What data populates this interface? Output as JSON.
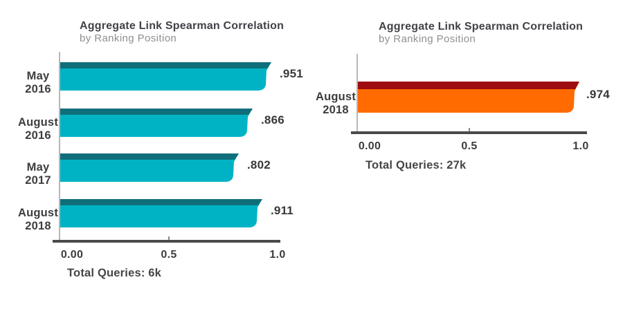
{
  "page": {
    "background": "#ffffff"
  },
  "chart_data": [
    {
      "type": "bar",
      "orientation": "horizontal",
      "title": "Aggregate Link Spearman Correlation",
      "subtitle": "by Ranking Position",
      "caption": "Total Queries: 6k",
      "categories": [
        [
          "May",
          "2016"
        ],
        [
          "August",
          "2016"
        ],
        [
          "May",
          "2017"
        ],
        [
          "August",
          "2018"
        ]
      ],
      "values": [
        0.951,
        0.866,
        0.802,
        0.911
      ],
      "value_labels": [
        ".951",
        ".866",
        ".802",
        ".911"
      ],
      "xlim": [
        0,
        1.0
      ],
      "x_ticks": [
        {
          "value": 0,
          "label": "0.00"
        },
        {
          "value": 0.5,
          "label": "0.5"
        },
        {
          "value": 1.0,
          "label": "1.0"
        }
      ],
      "grid": false,
      "legend": "none",
      "bar_color": "#00b3c4",
      "bar_top_color": "#106e7a",
      "axis_color": "#4a4a4a"
    },
    {
      "type": "bar",
      "orientation": "horizontal",
      "title": "Aggregate Link Spearman Correlation",
      "subtitle": "by Ranking Position",
      "caption": "Total Queries: 27k",
      "categories": [
        [
          "August",
          "2018"
        ]
      ],
      "values": [
        0.974
      ],
      "value_labels": [
        ".974"
      ],
      "xlim": [
        0,
        1.0
      ],
      "x_ticks": [
        {
          "value": 0,
          "label": "0.00"
        },
        {
          "value": 0.5,
          "label": "0.5"
        },
        {
          "value": 1.0,
          "label": "1.0"
        }
      ],
      "grid": false,
      "legend": "none",
      "bar_color": "#ff6b00",
      "bar_top_color": "#9e0c10",
      "axis_color": "#4a4a4a"
    }
  ]
}
